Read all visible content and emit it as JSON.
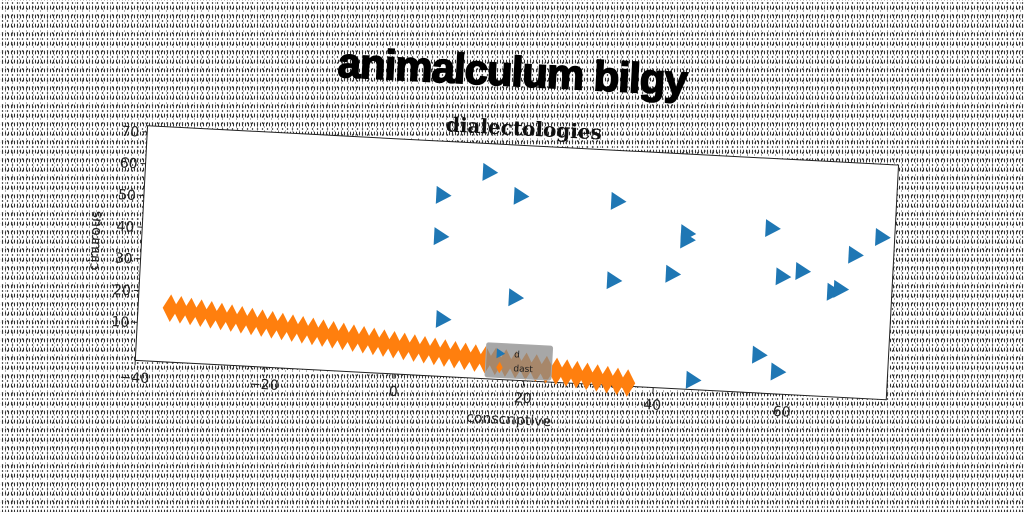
{
  "suptitle": "animalculum bilgy",
  "chart_data": {
    "type": "scatter",
    "title": "dialectologies",
    "xlabel": "conscriptive",
    "ylabel": "cinurous",
    "xlim": [
      -40,
      76
    ],
    "ylim": [
      -2,
      72
    ],
    "xticks": [
      -40,
      -20,
      0,
      20,
      40,
      60
    ],
    "yticks": [
      10,
      20,
      30,
      40,
      50,
      60,
      70
    ],
    "grid": false,
    "legend": {
      "placement": "lower center",
      "entries": [
        "d",
        "dast"
      ]
    },
    "series": [
      {
        "name": "d",
        "marker": "triangle-right",
        "color": "#1f77b4",
        "points": [
          [
            6,
            55
          ],
          [
            13,
            63
          ],
          [
            18,
            56
          ],
          [
            33,
            56
          ],
          [
            6,
            42
          ],
          [
            44,
            47
          ],
          [
            44,
            45
          ],
          [
            57,
            50
          ],
          [
            74,
            49
          ],
          [
            70,
            43
          ],
          [
            42,
            34
          ],
          [
            59,
            35
          ],
          [
            62,
            37
          ],
          [
            33,
            31
          ],
          [
            67,
            31
          ],
          [
            68,
            32
          ],
          [
            18,
            24
          ],
          [
            7,
            16
          ],
          [
            56,
            10
          ],
          [
            59,
            5
          ],
          [
            46,
            1
          ]
        ]
      },
      {
        "name": "dast",
        "marker": "thin-diamond",
        "color": "#ff7f0e",
        "x_range": [
          -35,
          36
        ],
        "y_range": [
          15,
          -1
        ],
        "count": 46
      }
    ]
  }
}
